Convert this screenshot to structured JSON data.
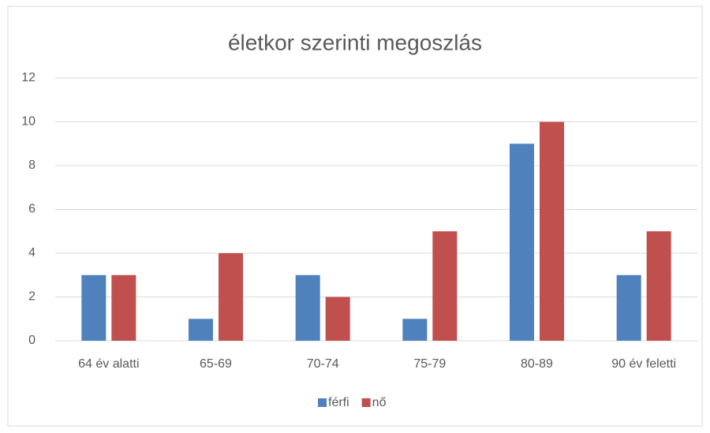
{
  "chart_data": {
    "type": "bar",
    "title": "életkor szerinti megoszlás",
    "categories": [
      "64 év alatti",
      "65-69",
      "70-74",
      "75-79",
      "80-89",
      "90 év feletti"
    ],
    "series": [
      {
        "name": "férfi",
        "color": "#4f81bd",
        "values": [
          3,
          1,
          3,
          1,
          9,
          3
        ]
      },
      {
        "name": "nő",
        "color": "#c0504d",
        "values": [
          3,
          4,
          2,
          5,
          10,
          5
        ]
      }
    ],
    "ylim": [
      0,
      12
    ],
    "yticks": [
      0,
      2,
      4,
      6,
      8,
      10,
      12
    ],
    "grid": true,
    "legend": "bottom"
  }
}
